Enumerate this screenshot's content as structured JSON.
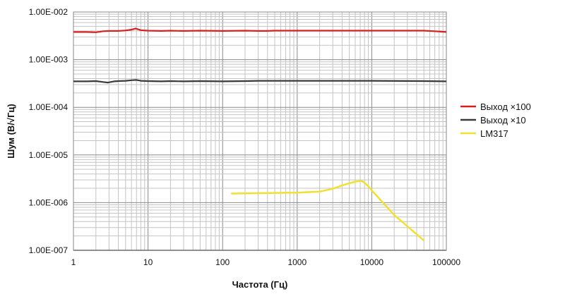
{
  "chart_data": {
    "type": "line",
    "title": "",
    "xlabel": "Частота (Гц)",
    "ylabel": "Шум (В/√Гц)",
    "x_scale": "log",
    "y_scale": "log",
    "xlim": [
      1,
      100000
    ],
    "ylim": [
      1e-07,
      0.01
    ],
    "x_ticks": [
      "1",
      "10",
      "100",
      "1000",
      "10000",
      "100000"
    ],
    "y_ticks": [
      "1.00E-007",
      "1.00E-006",
      "1.00E-005",
      "1.00E-004",
      "1.00E-003",
      "1.00E-002"
    ],
    "grid": true,
    "legend_position": "right",
    "series": [
      {
        "name": "Выход ×100",
        "color": "#d42020",
        "x": [
          1,
          1.5,
          2,
          2.5,
          3,
          4,
          5,
          6,
          6.8,
          8,
          10,
          15,
          20,
          30,
          50,
          100,
          200,
          300,
          380,
          500,
          1000,
          5000,
          10000,
          50000,
          70000,
          100000
        ],
        "y": [
          0.0038,
          0.0038,
          0.00375,
          0.00395,
          0.004,
          0.004,
          0.0041,
          0.00425,
          0.0045,
          0.00415,
          0.00405,
          0.004,
          0.00405,
          0.004,
          0.00405,
          0.004,
          0.00405,
          0.004,
          0.004,
          0.00405,
          0.00405,
          0.00405,
          0.00405,
          0.00405,
          0.00395,
          0.0038
        ]
      },
      {
        "name": "Выход ×10",
        "color": "#3a3a3a",
        "x": [
          1,
          1.5,
          2,
          2.5,
          2.9,
          3.5,
          4,
          5,
          6,
          7,
          8,
          10,
          15,
          20,
          30,
          50,
          100,
          200,
          300,
          380,
          500,
          1000,
          5000,
          10000,
          50000,
          100000
        ],
        "y": [
          0.00035,
          0.00035,
          0.000355,
          0.00034,
          0.00033,
          0.00035,
          0.000355,
          0.00036,
          0.00037,
          0.000375,
          0.00036,
          0.000355,
          0.00035,
          0.000355,
          0.00035,
          0.000355,
          0.00035,
          0.000355,
          0.00036,
          0.00036,
          0.00036,
          0.00036,
          0.00036,
          0.00036,
          0.000355,
          0.00035
        ]
      },
      {
        "name": "LM317",
        "color": "#f0e030",
        "x": [
          130,
          200,
          500,
          1000,
          2000,
          3000,
          4000,
          5000,
          6000,
          7000,
          7500,
          8000,
          9000,
          10000,
          15000,
          20000,
          30000,
          50000
        ],
        "y": [
          1.55e-06,
          1.57e-06,
          1.6e-06,
          1.62e-06,
          1.7e-06,
          1.95e-06,
          2.3e-06,
          2.55e-06,
          2.75e-06,
          2.85e-06,
          2.8e-06,
          2.6e-06,
          2.2e-06,
          1.8e-06,
          9e-07,
          5.5e-07,
          3.2e-07,
          1.6e-07
        ]
      }
    ]
  }
}
